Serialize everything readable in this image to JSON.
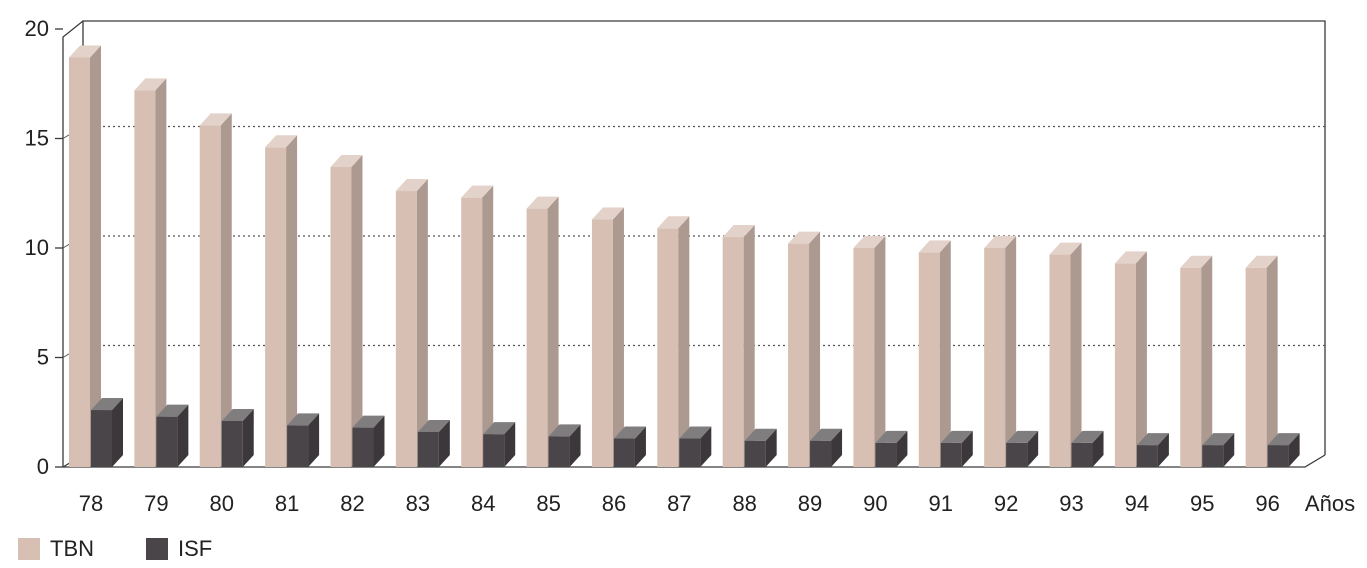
{
  "chart_data": {
    "type": "bar",
    "title": "",
    "xlabel": "Años",
    "ylabel": "",
    "ylim": [
      0,
      20
    ],
    "yticks": [
      "0",
      "5",
      "10",
      "15",
      "20"
    ],
    "categories": [
      "78",
      "79",
      "80",
      "81",
      "82",
      "83",
      "84",
      "85",
      "86",
      "87",
      "88",
      "89",
      "90",
      "91",
      "92",
      "93",
      "94",
      "95",
      "96"
    ],
    "series": [
      {
        "name": "TBN",
        "color": "#d7bfb3",
        "values": [
          18.7,
          17.2,
          15.6,
          14.6,
          13.7,
          12.6,
          12.3,
          11.8,
          11.3,
          10.9,
          10.5,
          10.2,
          10.0,
          9.8,
          10.0,
          9.7,
          9.3,
          9.1,
          9.1
        ]
      },
      {
        "name": "ISF",
        "color": "#4a4548",
        "values": [
          2.6,
          2.3,
          2.1,
          1.9,
          1.8,
          1.6,
          1.5,
          1.4,
          1.3,
          1.3,
          1.2,
          1.2,
          1.1,
          1.1,
          1.1,
          1.1,
          1.0,
          1.0,
          1.0
        ]
      }
    ],
    "grid": true,
    "legend_position": "bottom-left"
  },
  "legend": {
    "items": [
      {
        "label": "TBN",
        "color": "#d7bfb3"
      },
      {
        "label": "ISF",
        "color": "#4a4548"
      }
    ]
  }
}
